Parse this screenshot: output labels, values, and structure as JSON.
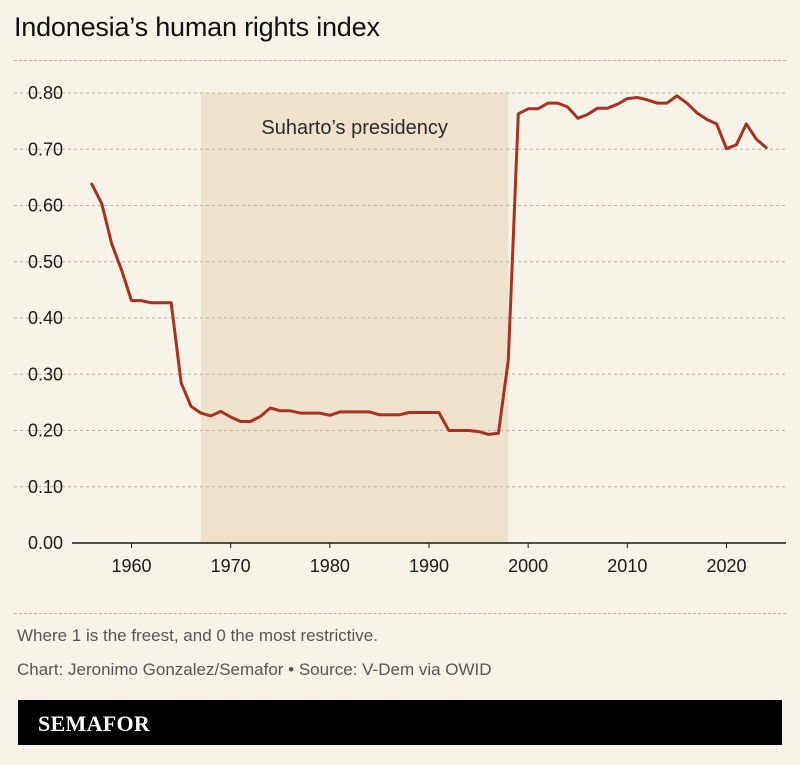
{
  "title": "Indonesia’s human rights index",
  "note": "Where 1 is the freest, and 0 the most restrictive.",
  "source": "Chart: Jeronimo Gonzalez/Semafor • Source: V-Dem via OWID",
  "brand": "SEMAFOR",
  "colors": {
    "background": "#f8f3e8",
    "line": "#a9321f",
    "shade": "#efe2cd",
    "grid": "#b9b3a6",
    "footer": "#000000"
  },
  "chart_data": {
    "type": "line",
    "title": "Indonesia’s human rights index",
    "xlabel": "",
    "ylabel": "",
    "xlim": [
      1954,
      2026
    ],
    "ylim": [
      0,
      0.8
    ],
    "x_ticks": [
      1960,
      1970,
      1980,
      1990,
      2000,
      2010,
      2020
    ],
    "y_ticks": [
      "0.00",
      "0.10",
      "0.20",
      "0.30",
      "0.40",
      "0.50",
      "0.60",
      "0.70",
      "0.80"
    ],
    "grid": "horizontal dashed",
    "highlight": {
      "label": "Suharto’s presidency",
      "start": 1967,
      "end": 1998
    },
    "series": [
      {
        "x": [
          1956,
          1957,
          1958,
          1959,
          1960,
          1961,
          1962,
          1963,
          1964,
          1965,
          1966,
          1967,
          1968,
          1969,
          1970,
          1971,
          1972,
          1973,
          1974,
          1975,
          1976,
          1977,
          1978,
          1979,
          1980,
          1981,
          1982,
          1983,
          1984,
          1985,
          1986,
          1987,
          1988,
          1989,
          1990,
          1991,
          1992,
          1993,
          1994,
          1995,
          1996,
          1997,
          1998,
          1999,
          2000,
          2001,
          2002,
          2003,
          2004,
          2005,
          2006,
          2007,
          2008,
          2009,
          2010,
          2011,
          2012,
          2013,
          2014,
          2015,
          2016,
          2017,
          2018,
          2019,
          2020,
          2021,
          2022,
          2023,
          2024
        ],
        "values": [
          0.638,
          0.603,
          0.532,
          0.485,
          0.431,
          0.431,
          0.427,
          0.427,
          0.427,
          0.285,
          0.243,
          0.231,
          0.226,
          0.234,
          0.224,
          0.216,
          0.216,
          0.225,
          0.24,
          0.235,
          0.235,
          0.231,
          0.231,
          0.231,
          0.227,
          0.233,
          0.233,
          0.233,
          0.233,
          0.228,
          0.228,
          0.228,
          0.232,
          0.232,
          0.232,
          0.232,
          0.2,
          0.2,
          0.2,
          0.198,
          0.193,
          0.195,
          0.325,
          0.763,
          0.772,
          0.772,
          0.782,
          0.782,
          0.775,
          0.755,
          0.762,
          0.773,
          0.773,
          0.78,
          0.79,
          0.792,
          0.788,
          0.782,
          0.782,
          0.795,
          0.782,
          0.765,
          0.753,
          0.745,
          0.701,
          0.708,
          0.745,
          0.718,
          0.703
        ]
      }
    ]
  }
}
